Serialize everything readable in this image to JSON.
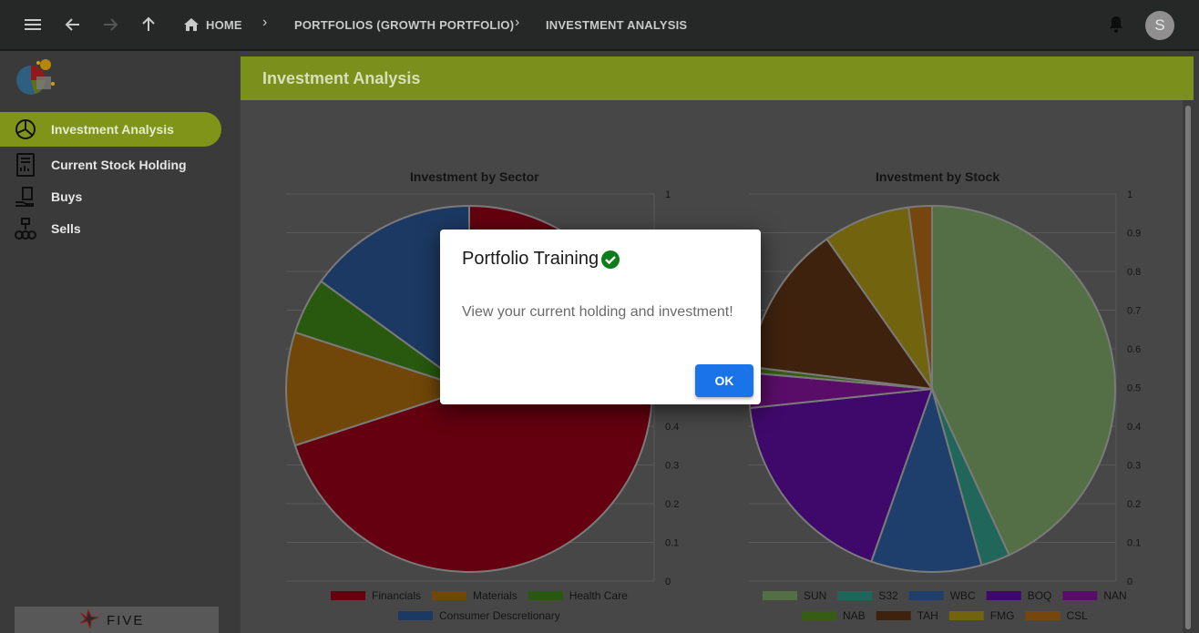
{
  "topbar": {
    "breadcrumbs": [
      "HOME",
      "PORTFOLIOS (GROWTH PORTFOLIO)",
      "INVESTMENT ANALYSIS"
    ],
    "avatar_initial": "S"
  },
  "sidebar": {
    "items": [
      {
        "label": "Investment Analysis",
        "icon": "pie-chart-icon",
        "active": true
      },
      {
        "label": "Current Stock Holding",
        "icon": "document-chart-icon",
        "active": false
      },
      {
        "label": "Buys",
        "icon": "clipboard-hand-icon",
        "active": false
      },
      {
        "label": "Sells",
        "icon": "coins-stack-icon",
        "active": false
      }
    ],
    "brand": "FIVE"
  },
  "main": {
    "title": "Investment Analysis"
  },
  "dialog": {
    "title": "Portfolio Training",
    "message": "View your current holding and investment!",
    "ok_label": "OK"
  },
  "colors": {
    "accent": "#7f9419",
    "primary_button": "#1a73e8"
  },
  "chart_data": [
    {
      "type": "pie",
      "title": "Investment by Sector",
      "categories": [
        "Financials",
        "Materials",
        "Health Care",
        "Consumer Descretionary"
      ],
      "values": [
        0.7,
        0.1,
        0.05,
        0.15
      ],
      "colors": [
        "#c8001e",
        "#e08e10",
        "#4fb11b",
        "#3872c5"
      ],
      "axis_ticks": [
        "1",
        "0.9",
        "0.8",
        "0.7",
        "0.6",
        "0.5",
        "0.4",
        "0.3",
        "0.2",
        "0.1",
        "0"
      ],
      "ylim": [
        0,
        1
      ],
      "legend_position": "bottom"
    },
    {
      "type": "pie",
      "title": "Investment by Stock",
      "categories": [
        "SUN",
        "S32",
        "WBC",
        "BOQ",
        "NAN",
        "NAB",
        "TAH",
        "FMG",
        "CSL"
      ],
      "values": [
        0.42,
        0.025,
        0.095,
        0.175,
        0.03,
        0.005,
        0.13,
        0.075,
        0.02
      ],
      "colors": [
        "#a7dc8b",
        "#3fcbb4",
        "#3b7ed5",
        "#7e12d6",
        "#b219d0",
        "#6bb82c",
        "#7b431b",
        "#e4c51b",
        "#ea8e1c"
      ],
      "axis_ticks": [
        "1",
        "0.9",
        "0.8",
        "0.7",
        "0.6",
        "0.5",
        "0.4",
        "0.3",
        "0.2",
        "0.1",
        "0"
      ],
      "ylim": [
        0,
        1
      ],
      "legend_position": "bottom"
    }
  ]
}
